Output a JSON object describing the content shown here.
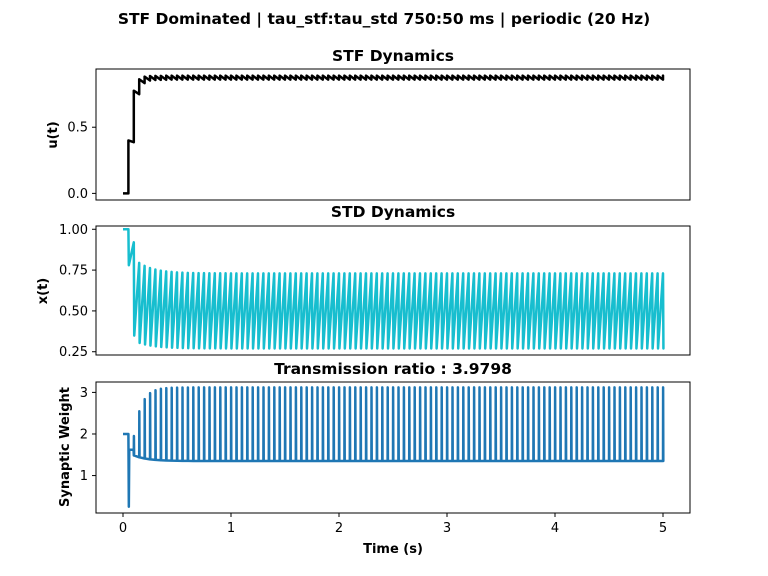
{
  "figure": {
    "suptitle": "STF Dominated | tau_stf:tau_std 750:50 ms | periodic (20 Hz)"
  },
  "chart_data": [
    {
      "type": "line",
      "title": "STF Dynamics",
      "ylabel": "u(t)",
      "xlabel": "",
      "xlim": [
        -0.25,
        5.25
      ],
      "ylim": [
        -0.05,
        0.94
      ],
      "yticks": [
        0.0,
        0.5
      ],
      "ytick_labels": [
        "0.0",
        "0.5"
      ],
      "xticks_visible": false,
      "grid": false,
      "series": [
        {
          "color": "#000000",
          "model": "facilitation",
          "t_start": 0.0,
          "t_end": 5.0,
          "first_spike": 0.05,
          "rate_hz": 20,
          "u_initial": 0.0,
          "u_post_first": 0.4,
          "u_steady_peak": 0.89,
          "u_steady_trough": 0.86
        }
      ]
    },
    {
      "type": "line",
      "title": "STD Dynamics",
      "ylabel": "x(t)",
      "xlabel": "",
      "xlim": [
        -0.25,
        5.25
      ],
      "ylim": [
        0.23,
        1.02
      ],
      "yticks": [
        0.25,
        0.5,
        0.75,
        1.0
      ],
      "ytick_labels": [
        "0.25",
        "0.50",
        "0.75",
        "1.00"
      ],
      "xticks_visible": false,
      "grid": false,
      "series": [
        {
          "color": "#17becf",
          "model": "depression",
          "t_start": 0.0,
          "t_end": 5.0,
          "first_spike": 0.05,
          "rate_hz": 20,
          "x_initial": 1.0,
          "x_after_first": 0.78,
          "x_before_second": 0.92,
          "x_steady_peak": 0.73,
          "x_steady_trough": 0.27
        }
      ]
    },
    {
      "type": "line",
      "title": "Transmission ratio : 3.9798",
      "ylabel": "Synaptic Weight",
      "xlabel": "Time (s)",
      "xlim": [
        -0.25,
        5.25
      ],
      "ylim": [
        0.1,
        3.25
      ],
      "yticks": [
        1,
        2,
        3
      ],
      "ytick_labels": [
        "1",
        "2",
        "3"
      ],
      "xticks": [
        0,
        1,
        2,
        3,
        4,
        5
      ],
      "xtick_labels": [
        "0",
        "1",
        "2",
        "3",
        "4",
        "5"
      ],
      "grid": false,
      "series": [
        {
          "color": "#1f77b4",
          "model": "spiking-weight",
          "t_start": 0.0,
          "t_end": 5.0,
          "first_spike": 0.05,
          "rate_hz": 20,
          "baseline_initial": 2.0,
          "first_dip": 0.25,
          "baseline_steady": 1.35,
          "spike_peak_steady": 3.12
        }
      ]
    }
  ]
}
